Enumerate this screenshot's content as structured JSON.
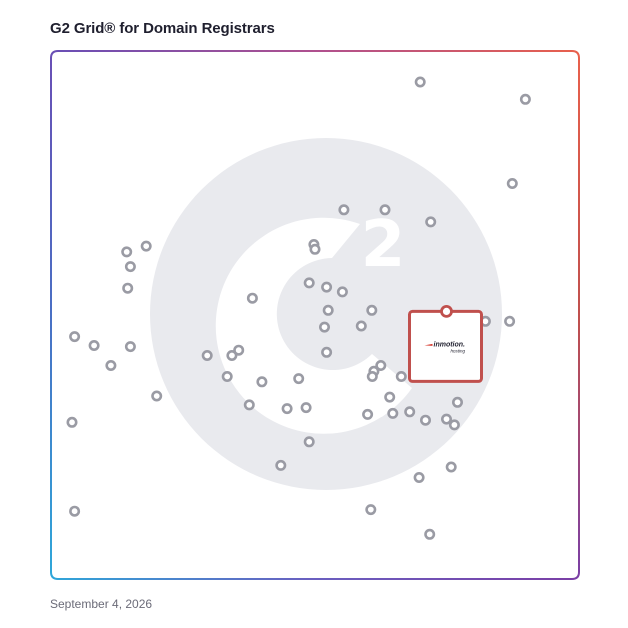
{
  "header": {
    "title": "G2 Grid® for Domain Registrars"
  },
  "footer": {
    "date": "September 4, 2026"
  },
  "colors": {
    "point_stroke": "#9a9ba4",
    "highlight": "#c0504d",
    "watermark": "#e9eaee",
    "border_top_right": "#e8604c",
    "border_top_left": "#6a4fb5",
    "border_bottom_left": "#2fa6d9",
    "border_bottom_right": "#7a3fa6",
    "divider_vertical": "#9b6fb8",
    "divider_horizontal": "#7a5fb0"
  },
  "chart_data": {
    "type": "scatter",
    "title": "G2 Grid® for Domain Registrars",
    "xlabel": "",
    "ylabel": "",
    "xlim": [
      0,
      100
    ],
    "ylim": [
      0,
      100
    ],
    "grid": "quadrants",
    "watermark_icon": "g2-logo-icon",
    "highlight": {
      "name": "InMotion Hosting",
      "logo_text": "inmotion.",
      "logo_subtext": "hosting",
      "x": 75.0,
      "y": 50.5
    },
    "points": [
      [
        70.0,
        94.3
      ],
      [
        90.0,
        91.0
      ],
      [
        87.5,
        75.0
      ],
      [
        55.5,
        70.0
      ],
      [
        63.3,
        70.0
      ],
      [
        72.0,
        67.7
      ],
      [
        49.8,
        63.4
      ],
      [
        50.0,
        62.5
      ],
      [
        17.9,
        63.1
      ],
      [
        14.2,
        62.0
      ],
      [
        14.9,
        59.2
      ],
      [
        14.4,
        55.1
      ],
      [
        48.9,
        56.1
      ],
      [
        52.2,
        55.3
      ],
      [
        55.2,
        54.4
      ],
      [
        38.1,
        53.2
      ],
      [
        52.5,
        50.9
      ],
      [
        60.8,
        50.9
      ],
      [
        82.4,
        48.8
      ],
      [
        87.0,
        48.8
      ],
      [
        51.8,
        47.7
      ],
      [
        58.8,
        47.9
      ],
      [
        4.3,
        45.9
      ],
      [
        8.0,
        44.2
      ],
      [
        14.9,
        44.0
      ],
      [
        52.2,
        42.9
      ],
      [
        29.5,
        42.3
      ],
      [
        34.2,
        42.3
      ],
      [
        35.5,
        43.3
      ],
      [
        11.2,
        40.4
      ],
      [
        62.5,
        40.4
      ],
      [
        61.2,
        39.3
      ],
      [
        60.9,
        38.3
      ],
      [
        66.4,
        38.3
      ],
      [
        80.8,
        38.3
      ],
      [
        33.3,
        38.3
      ],
      [
        46.9,
        37.9
      ],
      [
        39.9,
        37.3
      ],
      [
        19.9,
        34.6
      ],
      [
        64.2,
        34.4
      ],
      [
        77.1,
        33.4
      ],
      [
        37.5,
        32.9
      ],
      [
        44.7,
        32.2
      ],
      [
        48.3,
        32.4
      ],
      [
        68.0,
        31.6
      ],
      [
        60.0,
        31.1
      ],
      [
        64.8,
        31.3
      ],
      [
        75.0,
        30.2
      ],
      [
        71.0,
        30.0
      ],
      [
        76.5,
        29.1
      ],
      [
        3.8,
        29.6
      ],
      [
        48.9,
        25.9
      ],
      [
        43.5,
        21.4
      ],
      [
        75.9,
        21.1
      ],
      [
        69.8,
        19.1
      ],
      [
        60.6,
        13.0
      ],
      [
        4.3,
        12.7
      ],
      [
        71.8,
        8.3
      ]
    ]
  }
}
